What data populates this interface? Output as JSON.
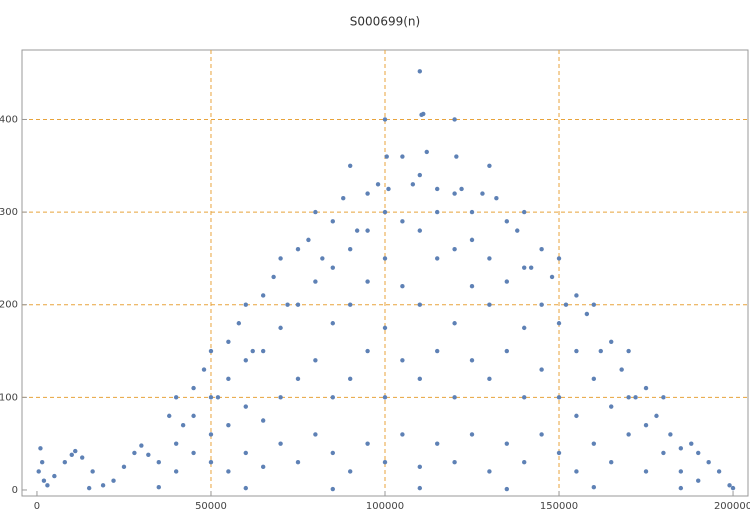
{
  "chart_data": {
    "type": "scatter",
    "title": "S000699(n)",
    "color": "#5e81b5",
    "xlim": [
      -4300,
      204300
    ],
    "ylim": [
      -6.5,
      475
    ],
    "xticks": [
      0,
      50000,
      100000,
      150000,
      200000
    ],
    "yticks": [
      0,
      100,
      200,
      300,
      400
    ],
    "grid_x": [
      50000,
      100000,
      150000
    ],
    "grid_y": [
      100,
      200,
      300,
      400
    ],
    "grid_color": "#e8a33b",
    "x": [
      500,
      1000,
      1500,
      2000,
      3000,
      5000,
      8000,
      10000,
      11000,
      13000,
      16000,
      19000,
      22000,
      25000,
      28000,
      30000,
      32000,
      35000,
      38000,
      40000,
      42000,
      45000,
      48000,
      50000,
      52000,
      55000,
      58000,
      60000,
      62000,
      65000,
      68000,
      70000,
      72000,
      75000,
      78000,
      80000,
      82000,
      85000,
      88000,
      90000,
      92000,
      95000,
      98000,
      100000,
      100500,
      101000,
      105000,
      108000,
      110000,
      110500,
      111000,
      112000,
      115000,
      120000,
      120500,
      122000,
      125000,
      128000,
      130000,
      132000,
      135000,
      138000,
      140000,
      142000,
      145000,
      148000,
      150000,
      152000,
      155000,
      158000,
      160000,
      162000,
      165000,
      168000,
      170000,
      172000,
      175000,
      178000,
      180000,
      182000,
      185000,
      188000,
      190000,
      193000,
      196000,
      199000,
      40000,
      40000,
      45000,
      45000,
      50000,
      50000,
      50000,
      55000,
      55000,
      55000,
      60000,
      60000,
      60000,
      65000,
      65000,
      65000,
      70000,
      70000,
      70000,
      75000,
      75000,
      75000,
      80000,
      80000,
      80000,
      85000,
      85000,
      85000,
      85000,
      90000,
      90000,
      90000,
      90000,
      95000,
      95000,
      95000,
      95000,
      100000,
      100000,
      100000,
      100000,
      100000,
      105000,
      105000,
      105000,
      105000,
      110000,
      110000,
      110000,
      110000,
      110000,
      115000,
      115000,
      115000,
      115000,
      120000,
      120000,
      120000,
      120000,
      120000,
      125000,
      125000,
      125000,
      125000,
      130000,
      130000,
      130000,
      130000,
      135000,
      135000,
      135000,
      140000,
      140000,
      140000,
      140000,
      145000,
      145000,
      145000,
      150000,
      150000,
      150000,
      155000,
      155000,
      155000,
      160000,
      160000,
      165000,
      165000,
      170000,
      170000,
      175000,
      175000,
      180000,
      185000,
      190000,
      15000,
      35000,
      60000,
      85000,
      110000,
      135000,
      160000,
      185000,
      200000
    ],
    "values": [
      20,
      45,
      30,
      10,
      5,
      15,
      30,
      38,
      42,
      35,
      20,
      5,
      10,
      25,
      40,
      48,
      38,
      30,
      80,
      100,
      70,
      110,
      130,
      150,
      100,
      160,
      180,
      200,
      150,
      210,
      230,
      250,
      200,
      260,
      270,
      300,
      250,
      290,
      315,
      350,
      280,
      320,
      330,
      400,
      360,
      325,
      360,
      330,
      452,
      405,
      406,
      365,
      325,
      400,
      360,
      325,
      300,
      320,
      350,
      315,
      290,
      280,
      300,
      240,
      260,
      230,
      250,
      200,
      210,
      190,
      200,
      150,
      160,
      130,
      150,
      100,
      110,
      80,
      100,
      60,
      45,
      50,
      40,
      30,
      20,
      5,
      20,
      50,
      40,
      80,
      30,
      60,
      100,
      20,
      70,
      120,
      40,
      90,
      140,
      25,
      75,
      150,
      50,
      100,
      175,
      30,
      120,
      200,
      60,
      140,
      225,
      40,
      100,
      180,
      240,
      20,
      120,
      200,
      260,
      50,
      150,
      225,
      280,
      30,
      100,
      175,
      250,
      300,
      60,
      140,
      220,
      290,
      25,
      120,
      200,
      280,
      340,
      50,
      150,
      250,
      300,
      30,
      100,
      180,
      260,
      320,
      60,
      140,
      220,
      270,
      20,
      120,
      200,
      250,
      50,
      150,
      225,
      30,
      100,
      175,
      240,
      60,
      130,
      200,
      40,
      100,
      180,
      20,
      80,
      150,
      50,
      120,
      30,
      90,
      60,
      100,
      20,
      70,
      40,
      20,
      10,
      2,
      3,
      2,
      1,
      2,
      1,
      3,
      2,
      2
    ]
  }
}
